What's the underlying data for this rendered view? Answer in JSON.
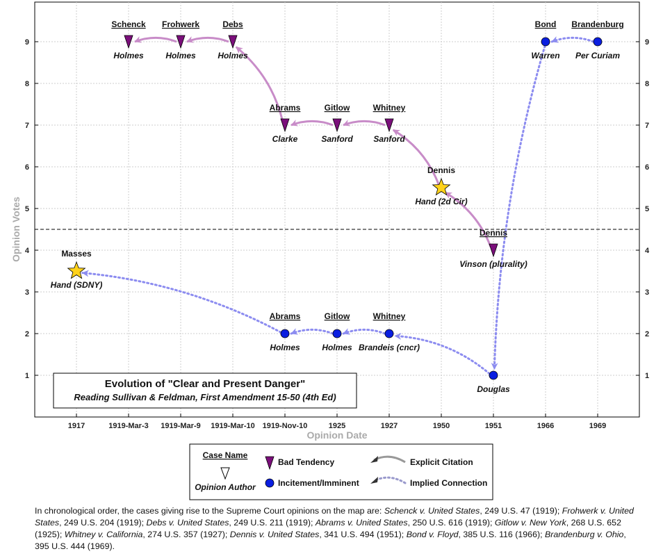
{
  "chart_data": {
    "type": "scatter",
    "title": "Evolution of \"Clear and Present Danger\"",
    "subtitle": "Reading Sullivan & Feldman, First Amendment 15-50 (4th Ed)",
    "xlabel": "Opinion Date",
    "ylabel": "Opinion Votes",
    "categories": [
      "1917",
      "1919-Mar-3",
      "1919-Mar-9",
      "1919-Mar-10",
      "1919-Nov-10",
      "1925",
      "1927",
      "1950",
      "1951",
      "1966",
      "1969"
    ],
    "y_ticks": [
      "1",
      "2",
      "3",
      "4",
      "5",
      "6",
      "7",
      "8",
      "9"
    ],
    "ylim": [
      0,
      9.9
    ],
    "threshold": 4.5,
    "grid": true,
    "points": [
      {
        "id": "masses",
        "case": "Masses",
        "author": "Hand (SDNY)",
        "x": "1917",
        "y": 3.5,
        "kind": "lower-court",
        "underline": false
      },
      {
        "id": "schenck",
        "case": "Schenck",
        "author": "Holmes",
        "x": "1919-Mar-3",
        "y": 9,
        "kind": "bad-tendency",
        "underline": true
      },
      {
        "id": "frohwerk",
        "case": "Frohwerk",
        "author": "Holmes",
        "x": "1919-Mar-9",
        "y": 9,
        "kind": "bad-tendency",
        "underline": true
      },
      {
        "id": "debs",
        "case": "Debs",
        "author": "Holmes",
        "x": "1919-Mar-10",
        "y": 9,
        "kind": "bad-tendency",
        "underline": true
      },
      {
        "id": "abrams-maj",
        "case": "Abrams",
        "author": "Clarke",
        "x": "1919-Nov-10",
        "y": 7,
        "kind": "bad-tendency",
        "underline": true
      },
      {
        "id": "gitlow-maj",
        "case": "Gitlow",
        "author": "Sanford",
        "x": "1925",
        "y": 7,
        "kind": "bad-tendency",
        "underline": true
      },
      {
        "id": "whitney-maj",
        "case": "Whitney",
        "author": "Sanford",
        "x": "1927",
        "y": 7,
        "kind": "bad-tendency",
        "underline": true
      },
      {
        "id": "dennis-2d",
        "case": "Dennis",
        "author": "Hand (2d Cir)",
        "x": "1950",
        "y": 5.5,
        "kind": "lower-court",
        "underline": false
      },
      {
        "id": "dennis-sc",
        "case": "Dennis",
        "author": "Vinson (plurality)",
        "x": "1951",
        "y": 4,
        "kind": "bad-tendency",
        "underline": true
      },
      {
        "id": "abrams-dis",
        "case": "Abrams",
        "author": "Holmes",
        "x": "1919-Nov-10",
        "y": 2,
        "kind": "incitement",
        "underline": true
      },
      {
        "id": "gitlow-dis",
        "case": "Gitlow",
        "author": "Holmes",
        "x": "1925",
        "y": 2,
        "kind": "incitement",
        "underline": true
      },
      {
        "id": "whitney-cncr",
        "case": "Whitney",
        "author": "Brandeis (cncr)",
        "x": "1927",
        "y": 2,
        "kind": "incitement",
        "underline": true
      },
      {
        "id": "dennis-dis",
        "case": "",
        "author": "Douglas",
        "x": "1951",
        "y": 1,
        "kind": "incitement",
        "underline": false
      },
      {
        "id": "bond",
        "case": "Bond",
        "author": "Warren",
        "x": "1966",
        "y": 9,
        "kind": "incitement",
        "underline": true
      },
      {
        "id": "brandenburg",
        "case": "Brandenburg",
        "author": "Per Curiam",
        "x": "1969",
        "y": 9,
        "kind": "incitement",
        "underline": true
      }
    ],
    "edges": [
      {
        "from": "frohwerk",
        "to": "schenck",
        "type": "explicit"
      },
      {
        "from": "debs",
        "to": "frohwerk",
        "type": "explicit"
      },
      {
        "from": "abrams-maj",
        "to": "debs",
        "type": "explicit"
      },
      {
        "from": "gitlow-maj",
        "to": "abrams-maj",
        "type": "explicit"
      },
      {
        "from": "whitney-maj",
        "to": "gitlow-maj",
        "type": "explicit"
      },
      {
        "from": "dennis-2d",
        "to": "whitney-maj",
        "type": "explicit"
      },
      {
        "from": "dennis-sc",
        "to": "dennis-2d",
        "type": "explicit"
      },
      {
        "from": "abrams-dis",
        "to": "masses",
        "type": "implied"
      },
      {
        "from": "gitlow-dis",
        "to": "abrams-dis",
        "type": "implied"
      },
      {
        "from": "whitney-cncr",
        "to": "gitlow-dis",
        "type": "implied"
      },
      {
        "from": "dennis-dis",
        "to": "whitney-cncr",
        "type": "implied"
      },
      {
        "from": "bond",
        "to": "dennis-dis",
        "type": "implied"
      },
      {
        "from": "brandenburg",
        "to": "bond",
        "type": "implied"
      }
    ],
    "legend": {
      "case_name": "Case Name",
      "opinion_author": "Opinion Author",
      "bad_tendency": "Bad Tendency",
      "incitement": "Incitement/Imminent",
      "explicit": "Explicit Citation",
      "implied": "Implied Connection"
    },
    "colors": {
      "bad_tendency": "#7b0f7b",
      "incitement": "#0a1ee0",
      "lower_court": "#ffd21a",
      "explicit_edge": "#c88cc8",
      "implied_edge": "#8c8cf0"
    }
  },
  "caption": {
    "intro": "In chronological order, the cases giving rise to the Supreme Court opinions on the map are:",
    "cases": [
      {
        "name": "Schenck v. United States",
        "cite": "249 U.S. 47 (1919);"
      },
      {
        "name": "Frohwerk v. United States",
        "cite": "249 U.S. 204 (1919);"
      },
      {
        "name": "Debs v. United States",
        "cite": "249 U.S. 211 (1919);"
      },
      {
        "name": "Abrams v. United States",
        "cite": "250 U.S. 616 (1919);"
      },
      {
        "name": "Gitlow v. New York",
        "cite": "268 U.S. 652 (1925);"
      },
      {
        "name": "Whitney v. California",
        "cite": "274 U.S. 357 (1927);"
      },
      {
        "name": "Dennis v. United States",
        "cite": "341 U.S. 494 (1951);"
      },
      {
        "name": "Bond v. Floyd",
        "cite": "385 U.S. 116 (1966);"
      },
      {
        "name": "Brandenburg v. Ohio",
        "cite": "395 U.S. 444 (1969)."
      }
    ]
  }
}
